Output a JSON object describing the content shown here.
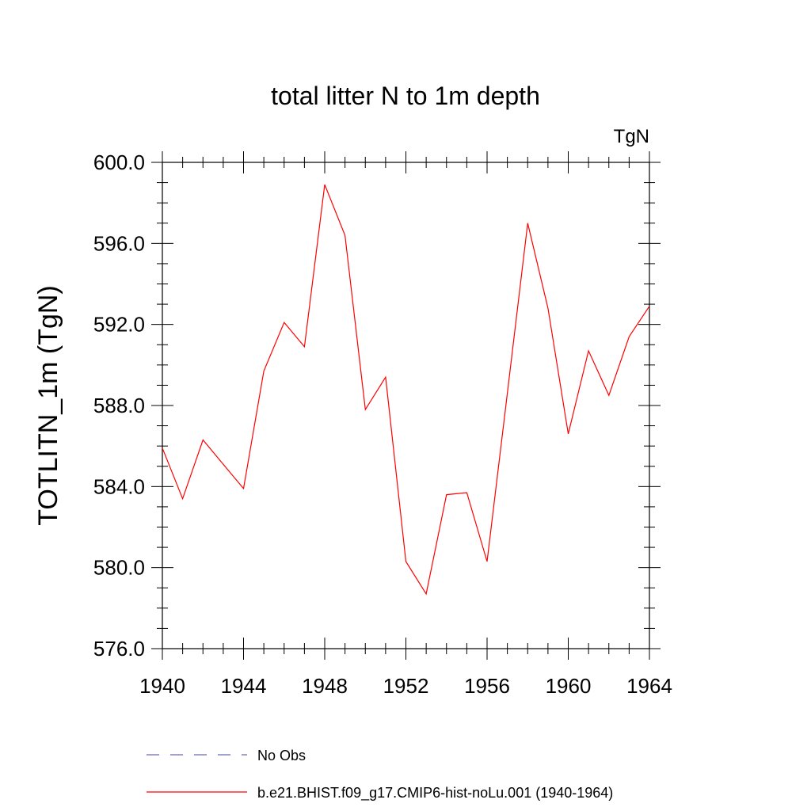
{
  "chart_data": {
    "type": "line",
    "title": "total litter N to 1m depth",
    "units_label": "TgN",
    "xlabel": "",
    "ylabel": "TOTLITN_1m  (TgN)",
    "xlim": [
      1940,
      1964
    ],
    "ylim": [
      576.0,
      600.0
    ],
    "x_ticks": [
      "1940",
      "1944",
      "1948",
      "1952",
      "1956",
      "1960",
      "1964"
    ],
    "y_ticks": [
      "576.0",
      "580.0",
      "584.0",
      "588.0",
      "592.0",
      "596.0",
      "600.0"
    ],
    "grid": false,
    "legend_position": "bottom",
    "series": [
      {
        "name": "b.e21.BHIST.f09_g17.CMIP6-hist-noLu.001 (1940-1964)",
        "color": "#ff0000",
        "style": "solid",
        "x": [
          1940,
          1941,
          1942,
          1943,
          1944,
          1945,
          1946,
          1947,
          1948,
          1949,
          1950,
          1951,
          1952,
          1953,
          1954,
          1955,
          1956,
          1957,
          1958,
          1959,
          1960,
          1961,
          1962,
          1963,
          1964
        ],
        "y": [
          585.9,
          583.4,
          586.3,
          585.1,
          583.9,
          589.7,
          592.1,
          590.9,
          598.9,
          596.4,
          587.8,
          589.4,
          580.3,
          578.7,
          583.6,
          583.7,
          580.3,
          588.6,
          597.0,
          592.8,
          586.6,
          590.7,
          588.5,
          591.4,
          592.9
        ]
      }
    ],
    "legend": [
      {
        "label": "No Obs",
        "color": "#6b6bb3",
        "style": "dashed"
      },
      {
        "label": "b.e21.BHIST.f09_g17.CMIP6-hist-noLu.001 (1940-1964)",
        "color": "#ff0000",
        "style": "solid"
      }
    ]
  }
}
